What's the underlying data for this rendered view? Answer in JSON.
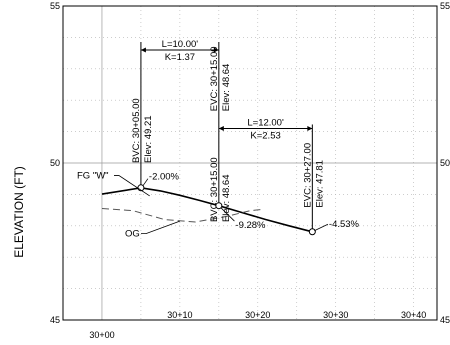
{
  "chart_data": {
    "type": "line",
    "title": "",
    "xlabel": "",
    "ylabel": "ELEVATION (FT)",
    "xlim": [
      2995,
      3043
    ],
    "ylim": [
      45,
      55
    ],
    "grid": true,
    "y_ticks": [
      "45",
      "50",
      "55"
    ],
    "y_ticks_right": [
      "45",
      "50",
      "55"
    ],
    "x_major_tick": {
      "value": 3000,
      "label": "30+00"
    },
    "x_minor_ticks": [
      {
        "value": 3010,
        "label": "30+10"
      },
      {
        "value": 3020,
        "label": "30+20"
      },
      {
        "value": 3030,
        "label": "30+30"
      },
      {
        "value": 3040,
        "label": "30+40"
      }
    ],
    "series": [
      {
        "name": "FG \"W\"",
        "style": "solid",
        "color": "#000000",
        "points": [
          [
            3000,
            49.01
          ],
          [
            3005,
            49.21
          ],
          [
            3007.5,
            49.11
          ],
          [
            3010,
            48.97
          ],
          [
            3012.5,
            48.81
          ],
          [
            3015,
            48.64
          ],
          [
            3018,
            48.42
          ],
          [
            3021,
            48.2
          ],
          [
            3024,
            48.0
          ],
          [
            3027,
            47.81
          ]
        ]
      },
      {
        "name": "OG",
        "style": "dashed",
        "color": "#555555",
        "points": [
          [
            3000,
            48.55
          ],
          [
            3004,
            48.48
          ],
          [
            3008,
            48.2
          ],
          [
            3012,
            48.12
          ],
          [
            3016,
            48.3
          ],
          [
            3019,
            48.48
          ],
          [
            3020.5,
            48.52
          ]
        ]
      }
    ],
    "pvi_points": [
      {
        "x": 3005,
        "y": 49.21,
        "label": "BVC: 30+05.00",
        "elev": "Elev: 49.21"
      },
      {
        "x": 3015,
        "y": 48.64,
        "label": "BVC: 30+15.00",
        "elev": "Elev: 48.64"
      },
      {
        "x": 3015,
        "y": 48.64,
        "label": "EVC: 30+15.00",
        "elev": "Elev: 48.64"
      },
      {
        "x": 3027,
        "y": 47.81,
        "label": "EVC: 30+27.00",
        "elev": "Elev: 47.81"
      }
    ],
    "curves": [
      {
        "x1": 3005,
        "x2": 3015,
        "length": "L=10.00'",
        "k": "K=1.37",
        "y": 53.6
      },
      {
        "x1": 3015,
        "x2": 3027,
        "length": "L=12.00'",
        "k": "K=2.53",
        "y": 51.1
      }
    ],
    "grades": [
      {
        "text": "-2.00%",
        "x": 3005,
        "y": 49.21
      },
      {
        "text": "-9.28%",
        "x": 3015,
        "y": 48.64
      },
      {
        "text": "-4.53%",
        "x": 3027,
        "y": 47.81
      }
    ],
    "callouts": [
      {
        "text": "FG \"W\"",
        "x": 3006,
        "y": 48.95
      },
      {
        "text": "OG",
        "x": 3010,
        "y": 48.15
      }
    ]
  }
}
